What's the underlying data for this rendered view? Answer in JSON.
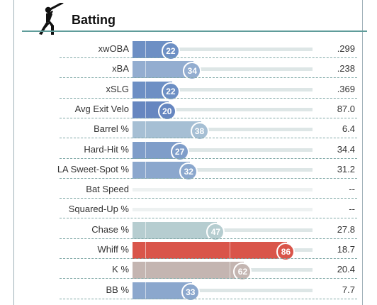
{
  "header": {
    "title": "Batting",
    "icon": "batter-icon"
  },
  "scale_max": 100,
  "rows": [
    {
      "label": "xwOBA",
      "percentile": 22,
      "value": ".299",
      "color": "#6d8fc4"
    },
    {
      "label": "xBA",
      "percentile": 34,
      "value": ".238",
      "color": "#93add0"
    },
    {
      "label": "xSLG",
      "percentile": 22,
      "value": ".369",
      "color": "#6d8fc4"
    },
    {
      "label": "Avg Exit Velo",
      "percentile": 20,
      "value": "87.0",
      "color": "#6686c0"
    },
    {
      "label": "Barrel %",
      "percentile": 38,
      "value": "6.4",
      "color": "#a6bfd4"
    },
    {
      "label": "Hard-Hit %",
      "percentile": 27,
      "value": "34.4",
      "color": "#7f9dc9"
    },
    {
      "label": "LA Sweet-Spot %",
      "percentile": 32,
      "value": "31.2",
      "color": "#8ba7cd"
    },
    {
      "label": "Bat Speed",
      "percentile": null,
      "value": "--",
      "color": ""
    },
    {
      "label": "Squared-Up %",
      "percentile": null,
      "value": "--",
      "color": ""
    },
    {
      "label": "Chase %",
      "percentile": 47,
      "value": "27.8",
      "color": "#b6cdd0"
    },
    {
      "label": "Whiff %",
      "percentile": 86,
      "value": "18.7",
      "color": "#d9554a"
    },
    {
      "label": "K %",
      "percentile": 62,
      "value": "20.4",
      "color": "#c4b5b1"
    },
    {
      "label": "BB %",
      "percentile": 33,
      "value": "7.7",
      "color": "#8ba7cd"
    }
  ]
}
